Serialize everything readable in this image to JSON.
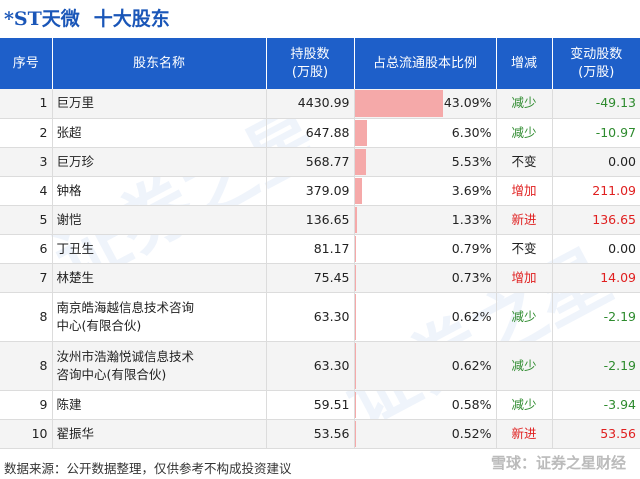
{
  "title": {
    "stock": "*ST天微",
    "subtitle": "十大股东"
  },
  "headers": {
    "rank": "序号",
    "name": "股东名称",
    "shares": [
      "持股数",
      "(万股)"
    ],
    "ratio": "占总流通股本比例",
    "change_type": "增减",
    "change": [
      "变动股数",
      "(万股)"
    ]
  },
  "chart_data": {
    "type": "table",
    "columns": [
      "序号",
      "股东名称",
      "持股数(万股)",
      "占总流通股本比例",
      "增减",
      "变动股数(万股)"
    ],
    "rows": [
      {
        "rank": "1",
        "name": [
          "巨万里"
        ],
        "shares": "4430.99",
        "ratio_text": "43.09%",
        "ratio": 43.09,
        "change_type": "减少",
        "dir": "down",
        "change": "-49.13"
      },
      {
        "rank": "2",
        "name": [
          "张超"
        ],
        "shares": "647.88",
        "ratio_text": "6.30%",
        "ratio": 6.3,
        "change_type": "减少",
        "dir": "down",
        "change": "-10.97"
      },
      {
        "rank": "3",
        "name": [
          "巨万珍"
        ],
        "shares": "568.77",
        "ratio_text": "5.53%",
        "ratio": 5.53,
        "change_type": "不变",
        "dir": "flat",
        "change": "0.00"
      },
      {
        "rank": "4",
        "name": [
          "钟格"
        ],
        "shares": "379.09",
        "ratio_text": "3.69%",
        "ratio": 3.69,
        "change_type": "增加",
        "dir": "up",
        "change": "211.09"
      },
      {
        "rank": "5",
        "name": [
          "谢恺"
        ],
        "shares": "136.65",
        "ratio_text": "1.33%",
        "ratio": 1.33,
        "change_type": "新进",
        "dir": "up",
        "change": "136.65"
      },
      {
        "rank": "6",
        "name": [
          "丁丑生"
        ],
        "shares": "81.17",
        "ratio_text": "0.79%",
        "ratio": 0.79,
        "change_type": "不变",
        "dir": "flat",
        "change": "0.00"
      },
      {
        "rank": "7",
        "name": [
          "林楚生"
        ],
        "shares": "75.45",
        "ratio_text": "0.73%",
        "ratio": 0.73,
        "change_type": "增加",
        "dir": "up",
        "change": "14.09"
      },
      {
        "rank": "8",
        "name": [
          "南京皓海越信息技术咨询",
          "中心(有限合伙)"
        ],
        "shares": "63.30",
        "ratio_text": "0.62%",
        "ratio": 0.62,
        "change_type": "减少",
        "dir": "down",
        "change": "-2.19"
      },
      {
        "rank": "8",
        "name": [
          "汝州市浩瀚悦诚信息技术",
          "咨询中心(有限合伙)"
        ],
        "shares": "63.30",
        "ratio_text": "0.62%",
        "ratio": 0.62,
        "change_type": "减少",
        "dir": "down",
        "change": "-2.19"
      },
      {
        "rank": "9",
        "name": [
          "陈建"
        ],
        "shares": "59.51",
        "ratio_text": "0.58%",
        "ratio": 0.58,
        "change_type": "减少",
        "dir": "down",
        "change": "-3.94"
      },
      {
        "rank": "10",
        "name": [
          "翟振华"
        ],
        "shares": "53.56",
        "ratio_text": "0.52%",
        "ratio": 0.52,
        "change_type": "新进",
        "dir": "up",
        "change": "53.56"
      }
    ]
  },
  "colors": {
    "header_bg": "#1e5fc9",
    "title": "#1a56b8",
    "bar": "#f5a9a9",
    "down": "#2e8b2e",
    "up": "#e02020"
  },
  "watermark": "证券之星",
  "footer": "数据来源：公开数据整理，仅供参考不构成投资建议",
  "brand": "雪球：证券之星财经"
}
